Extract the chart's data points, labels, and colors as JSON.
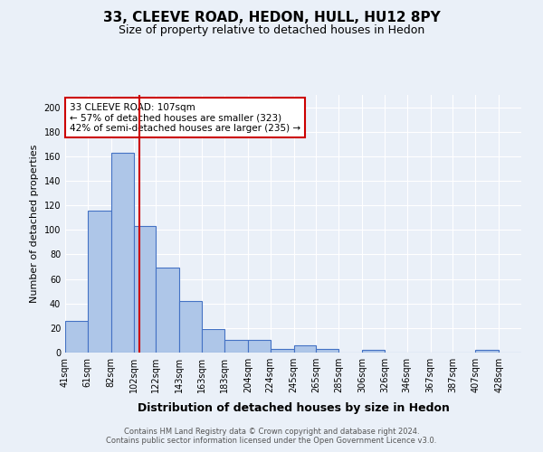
{
  "title": "33, CLEEVE ROAD, HEDON, HULL, HU12 8PY",
  "subtitle": "Size of property relative to detached houses in Hedon",
  "xlabel": "Distribution of detached houses by size in Hedon",
  "ylabel": "Number of detached properties",
  "footer_line1": "Contains HM Land Registry data © Crown copyright and database right 2024.",
  "footer_line2": "Contains public sector information licensed under the Open Government Licence v3.0.",
  "annotation_line1": "33 CLEEVE ROAD: 107sqm",
  "annotation_line2": "← 57% of detached houses are smaller (323)",
  "annotation_line3": "42% of semi-detached houses are larger (235) →",
  "property_size": 107,
  "bar_edges": [
    41,
    61,
    82,
    102,
    122,
    143,
    163,
    183,
    204,
    224,
    245,
    265,
    285,
    306,
    326,
    346,
    367,
    387,
    407,
    428,
    448
  ],
  "bar_heights": [
    26,
    116,
    163,
    103,
    69,
    42,
    19,
    10,
    10,
    3,
    6,
    3,
    0,
    2,
    0,
    0,
    0,
    0,
    2,
    0
  ],
  "bar_color": "#aec6e8",
  "bar_edge_color": "#4472c4",
  "vline_color": "#cc0000",
  "vline_x": 107,
  "bg_color": "#eaf0f8",
  "plot_bg_color": "#eaf0f8",
  "grid_color": "#ffffff",
  "ylim": [
    0,
    210
  ],
  "yticks": [
    0,
    20,
    40,
    60,
    80,
    100,
    120,
    140,
    160,
    180,
    200
  ],
  "annotation_box_color": "#cc0000",
  "annotation_text_color": "#000000",
  "title_fontsize": 11,
  "subtitle_fontsize": 9,
  "xlabel_fontsize": 9,
  "ylabel_fontsize": 8,
  "tick_fontsize": 7,
  "footer_fontsize": 6
}
